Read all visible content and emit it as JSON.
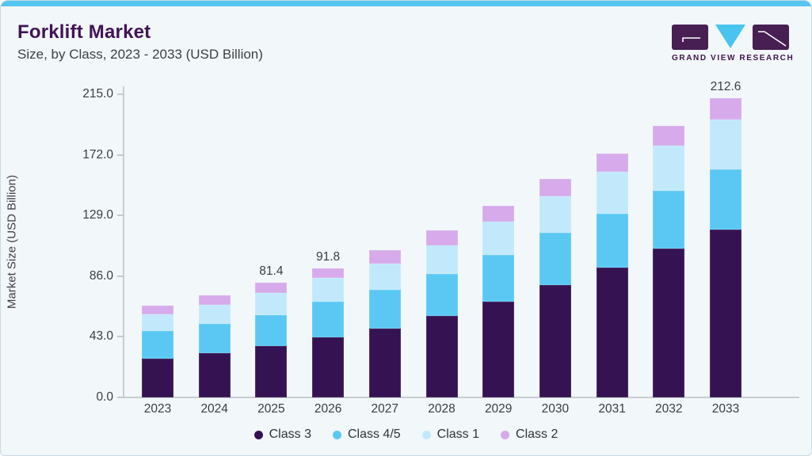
{
  "header": {
    "title": "Forklift Market",
    "subtitle": "Size, by Class, 2023 - 2033 (USD Billion)"
  },
  "logo": {
    "text": "GRAND VIEW RESEARCH",
    "purple": "#471f52",
    "blue": "#49c3ef"
  },
  "colors": {
    "card_background": "#f2f7fa",
    "accent_bar": "#55c5ef",
    "title": "#411357",
    "body_text": "#3d4045",
    "axis_line": "#c8cdd1"
  },
  "chart_data": {
    "type": "bar",
    "stacked": true,
    "title": "Forklift Market Size, by Class, 2023 - 2033 (USD Billion)",
    "xlabel": "",
    "ylabel": "Market Size (USD Billion)",
    "ylim": [
      0,
      215
    ],
    "y_ticks": [
      215.0,
      172.0,
      129.0,
      86.0,
      43.0,
      0.0
    ],
    "grid": false,
    "legend_position": "bottom",
    "categories": [
      "2023",
      "2024",
      "2025",
      "2026",
      "2027",
      "2028",
      "2029",
      "2030",
      "2031",
      "2032",
      "2033"
    ],
    "series": [
      {
        "name": "Class 3",
        "color": "#351352",
        "values": [
          27.5,
          31.6,
          36.3,
          42.6,
          49.0,
          57.9,
          67.9,
          80.0,
          91.9,
          105.6,
          119.3
        ]
      },
      {
        "name": "Class 4/5",
        "color": "#5bc8f4",
        "values": [
          19.5,
          20.7,
          22.0,
          25.1,
          27.2,
          30.0,
          33.3,
          36.6,
          38.5,
          41.3,
          42.3
        ]
      },
      {
        "name": "Class 1",
        "color": "#c1e9fb",
        "values": [
          11.9,
          13.6,
          16.0,
          17.0,
          19.0,
          20.2,
          23.5,
          26.3,
          29.8,
          31.5,
          35.5
        ]
      },
      {
        "name": "Class 2",
        "color": "#d6aaeb",
        "values": [
          6.0,
          6.7,
          7.1,
          7.1,
          9.1,
          10.5,
          11.0,
          12.4,
          12.6,
          14.2,
          15.5
        ]
      }
    ],
    "totals": [
      64.9,
      72.6,
      81.4,
      91.8,
      104.3,
      118.6,
      135.7,
      155.3,
      172.8,
      192.6,
      212.6
    ],
    "bar_labels": [
      {
        "category": "2025",
        "text": "81.4"
      },
      {
        "category": "2026",
        "text": "91.8"
      },
      {
        "category": "2033",
        "text": "212.6"
      }
    ]
  }
}
